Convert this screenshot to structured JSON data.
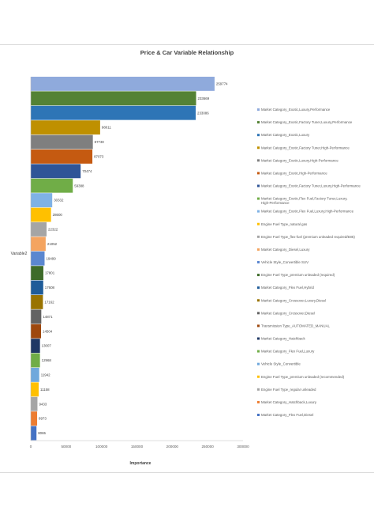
{
  "chart_data": {
    "type": "bar",
    "orientation": "horizontal",
    "title": "Price & Car Variable Relationship",
    "xlabel": "Importance",
    "ylabel": "Variable2",
    "xlim": [
      0,
      300000
    ],
    "xticks": [
      0,
      50000,
      100000,
      150000,
      200000,
      250000,
      300000
    ],
    "grid": false,
    "legend_position": "right",
    "series": [
      {
        "name": "Market Category_Exotic,Luxury,Performance",
        "value": 259774,
        "color": "#8faadc"
      },
      {
        "name": "Market Category_Exotic,Factory Tuner,Luxury,Performance",
        "value": 233669,
        "color": "#548235"
      },
      {
        "name": "Market Category_Exotic,Luxury",
        "value": 233086,
        "color": "#2e75b6"
      },
      {
        "name": "Market Category_Exotic,Factory Tuner,High-Performance",
        "value": 98011,
        "color": "#bf9000"
      },
      {
        "name": "Market Category_Exotic,Luxury,High-Performance",
        "value": 87730,
        "color": "#7f7f7f"
      },
      {
        "name": "Market Category_Exotic,High-Performance",
        "value": 87073,
        "color": "#c55a11"
      },
      {
        "name": "Market Category_Exotic,Factory Tuner,Luxury,High-Performance",
        "value": 70474,
        "color": "#2f5597"
      },
      {
        "name": "Market Category_Exotic,Flex Fuel,Factory Tuner,Luxury,High-Performance",
        "value": 59388,
        "color": "#70ad47"
      },
      {
        "name": "Market Category_Exotic,Flex Fuel,Luxury,High-Performance",
        "value": 30332,
        "color": "#7fb2e5"
      },
      {
        "name": "Engine Fuel Type_natural gas",
        "value": 28600,
        "color": "#ffc000"
      },
      {
        "name": "Engine Fuel Type_flex-fuel (premium unleaded required/E85)",
        "value": 22322,
        "color": "#a5a5a5"
      },
      {
        "name": "Market Category_Diesel,Luxury",
        "value": 21052,
        "color": "#f4a460"
      },
      {
        "name": "Vehicle Style_Convertible SUV",
        "value": 19499,
        "color": "#5b87d0"
      },
      {
        "name": "Engine Fuel Type_premium unleaded (required)",
        "value": 17801,
        "color": "#3e6b2a"
      },
      {
        "name": "Market Category_Flex Fuel,Hybrid",
        "value": 17608,
        "color": "#1f5c99"
      },
      {
        "name": "Market Category_Crossover,Luxury,Diesel",
        "value": 17162,
        "color": "#997300"
      },
      {
        "name": "Market Category_Crossover,Diesel",
        "value": 14871,
        "color": "#636363"
      },
      {
        "name": "Transmission Type_AUTOMATED_MANUAL",
        "value": 14504,
        "color": "#9e480e"
      },
      {
        "name": "Market Category_Hatchback",
        "value": 13007,
        "color": "#203864"
      },
      {
        "name": "Market Category_Flex Fuel,Luxury",
        "value": 12968,
        "color": "#70ad47"
      },
      {
        "name": "Vehicle Style_Convertible",
        "value": 11942,
        "color": "#6fa8dc"
      },
      {
        "name": "Engine Fuel Type_premium unleaded (recommended)",
        "value": 11158,
        "color": "#ffc000"
      },
      {
        "name": "Engine Fuel Type_regular unleaded",
        "value": 9433,
        "color": "#a5a5a5"
      },
      {
        "name": "Market Category_Hatchback,Luxury",
        "value": 8973,
        "color": "#ed7d31"
      },
      {
        "name": "Market Category_Flex Fuel,Diesel",
        "value": 8065,
        "color": "#4472c4"
      }
    ]
  }
}
